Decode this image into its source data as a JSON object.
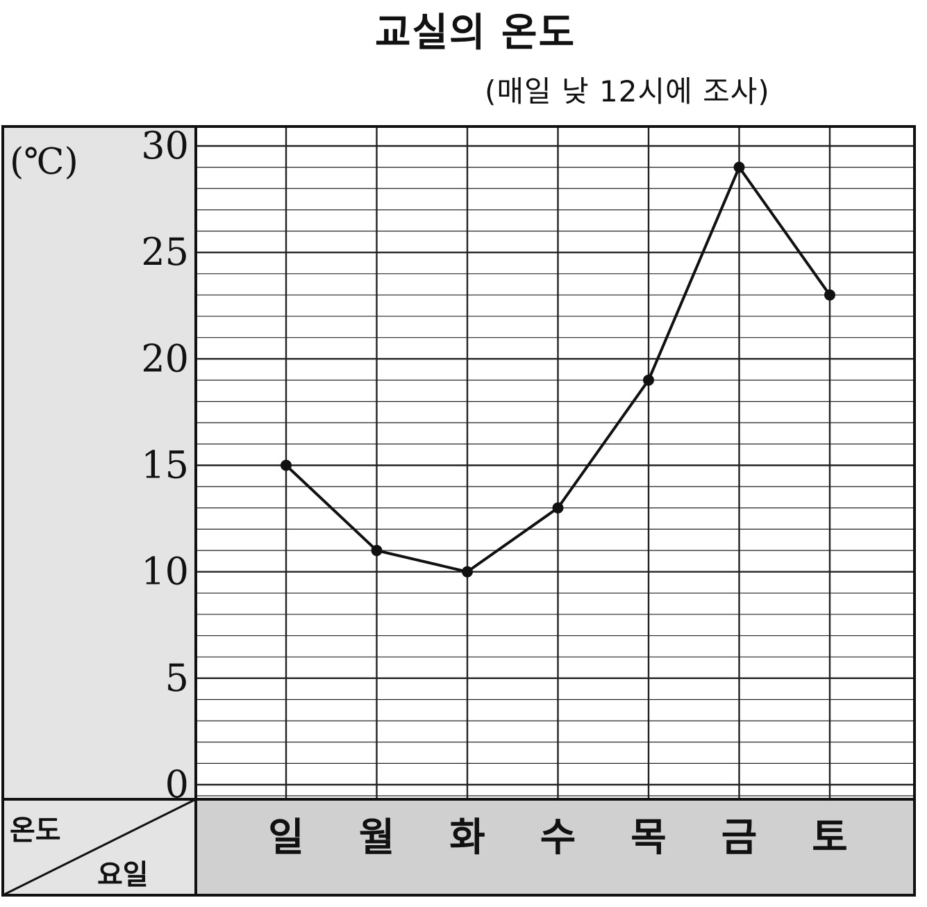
{
  "chart_data": {
    "type": "line",
    "title": "교실의 온도",
    "subtitle": "(매일 낮 12시에 조사)",
    "ylabel": "(℃)",
    "corner_top": "온도",
    "corner_bottom": "요일",
    "categories": [
      "일",
      "월",
      "화",
      "수",
      "목",
      "금",
      "토"
    ],
    "values": [
      15,
      11,
      10,
      13,
      19,
      29,
      23
    ],
    "yticks": [
      0,
      5,
      10,
      15,
      20,
      25,
      30
    ],
    "ylim": [
      0,
      31
    ],
    "minor_step": 1,
    "grid": true,
    "colors": {
      "line": "#111111",
      "grid": "#222222",
      "panel": "#e4e4e4",
      "footer": "#d0d0d0"
    }
  }
}
